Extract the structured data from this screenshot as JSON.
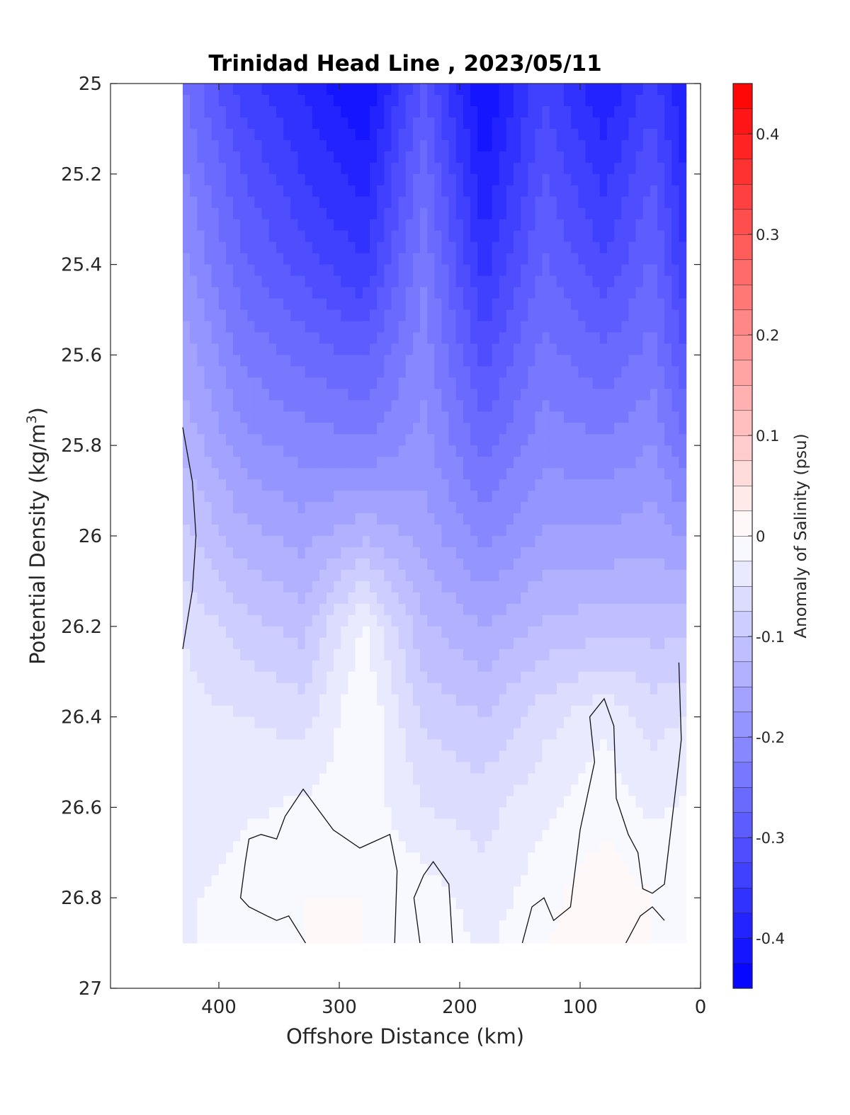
{
  "chart_data": {
    "type": "heatmap",
    "title": "Trinidad Head Line , 2023/05/11",
    "xlabel": "Offshore Distance (km)",
    "ylabel_main": "Potential Density (kg/m",
    "ylabel_sup": "3",
    "ylabel_close": ")",
    "colorbar_label": "Anomaly of Salinity (psu)",
    "xlim": [
      490,
      0
    ],
    "ylim": [
      25,
      27
    ],
    "y_reversed": true,
    "x_reversed": true,
    "xticks": [
      400,
      300,
      200,
      100,
      0
    ],
    "xtick_labels": [
      "400",
      "300",
      "200",
      "100",
      "0"
    ],
    "yticks": [
      25,
      25.2,
      25.4,
      25.6,
      25.8,
      26,
      26.2,
      26.4,
      26.6,
      26.8,
      27
    ],
    "ytick_labels": [
      "25",
      "25.2",
      "25.4",
      "25.6",
      "25.8",
      "26",
      "26.2",
      "26.4",
      "26.6",
      "26.8",
      "27"
    ],
    "clim": [
      -0.45,
      0.45
    ],
    "cbar_ticks": [
      0.4,
      0.3,
      0.2,
      0.1,
      0,
      -0.1,
      -0.2,
      -0.3,
      -0.4
    ],
    "cbar_tick_labels": [
      "0.4",
      "0.3",
      "0.2",
      "0.1",
      "0",
      "-0.1",
      "-0.2",
      "-0.3",
      "-0.4"
    ],
    "cbar_levels": 36,
    "colormap": {
      "negative": "#0000ff",
      "zero": "#ffffff",
      "positive": "#ff0000"
    },
    "data_extent": {
      "x": [
        430,
        12
      ],
      "y": [
        25,
        26.9
      ]
    },
    "stations_x": [
      430,
      380,
      330,
      280,
      230,
      180,
      130,
      80,
      40,
      12
    ],
    "profile_y": [
      25,
      25.2,
      25.4,
      25.6,
      25.8,
      26.0,
      26.2,
      26.4,
      26.6,
      26.8,
      26.9
    ],
    "salinity_anomaly": [
      [
        -0.25,
        -0.34,
        -0.38,
        -0.43,
        -0.3,
        -0.43,
        -0.33,
        -0.4,
        -0.34,
        -0.4
      ],
      [
        -0.22,
        -0.3,
        -0.35,
        -0.39,
        -0.26,
        -0.4,
        -0.3,
        -0.36,
        -0.3,
        -0.38
      ],
      [
        -0.19,
        -0.27,
        -0.31,
        -0.35,
        -0.23,
        -0.36,
        -0.27,
        -0.32,
        -0.27,
        -0.35
      ],
      [
        -0.16,
        -0.23,
        -0.26,
        -0.28,
        -0.21,
        -0.31,
        -0.24,
        -0.27,
        -0.24,
        -0.3
      ],
      [
        -0.13,
        -0.19,
        -0.21,
        -0.22,
        -0.19,
        -0.26,
        -0.21,
        -0.22,
        -0.2,
        -0.25
      ],
      [
        -0.09,
        -0.14,
        -0.16,
        -0.13,
        -0.16,
        -0.21,
        -0.17,
        -0.17,
        -0.16,
        -0.18
      ],
      [
        -0.05,
        -0.09,
        -0.11,
        -0.02,
        -0.12,
        -0.15,
        -0.12,
        -0.11,
        -0.11,
        -0.11
      ],
      [
        -0.04,
        -0.05,
        -0.06,
        0.0,
        -0.08,
        -0.1,
        -0.06,
        -0.03,
        -0.06,
        -0.05
      ],
      [
        -0.05,
        -0.03,
        -0.02,
        -0.01,
        -0.05,
        -0.06,
        -0.03,
        -0.01,
        -0.03,
        -0.02
      ],
      [
        -0.03,
        -0.01,
        0.0,
        0.0,
        -0.01,
        -0.04,
        -0.01,
        0.02,
        0.0,
        -0.01
      ],
      [
        -0.03,
        -0.01,
        0.0,
        0.0,
        0.0,
        -0.03,
        0.0,
        0.02,
        0.0,
        -0.01
      ]
    ],
    "zero_contours": [
      [
        [
          430,
          25.76
        ],
        [
          422,
          25.88
        ],
        [
          419,
          26.0
        ],
        [
          422,
          26.12
        ],
        [
          430,
          26.25
        ]
      ],
      [
        [
          328,
          26.9
        ],
        [
          342,
          26.84
        ],
        [
          352,
          26.85
        ],
        [
          360,
          26.84
        ],
        [
          375,
          26.82
        ],
        [
          382,
          26.8
        ],
        [
          378,
          26.72
        ],
        [
          375,
          26.67
        ],
        [
          365,
          26.66
        ],
        [
          352,
          26.67
        ],
        [
          345,
          26.62
        ],
        [
          330,
          26.56
        ],
        [
          305,
          26.65
        ],
        [
          283,
          26.69
        ],
        [
          258,
          26.66
        ],
        [
          252,
          26.74
        ],
        [
          254,
          26.9
        ]
      ],
      [
        [
          206,
          26.9
        ],
        [
          209,
          26.77
        ],
        [
          222,
          26.72
        ],
        [
          230,
          26.75
        ],
        [
          238,
          26.8
        ],
        [
          233,
          26.9
        ]
      ],
      [
        [
          148,
          26.9
        ],
        [
          140,
          26.82
        ],
        [
          130,
          26.8
        ],
        [
          122,
          26.85
        ],
        [
          108,
          26.82
        ],
        [
          100,
          26.65
        ],
        [
          88,
          26.5
        ],
        [
          92,
          26.4
        ],
        [
          80,
          26.36
        ],
        [
          72,
          26.42
        ],
        [
          70,
          26.58
        ],
        [
          60,
          26.66
        ],
        [
          52,
          26.7
        ],
        [
          48,
          26.78
        ],
        [
          40,
          26.79
        ],
        [
          30,
          26.77
        ],
        [
          18,
          26.5
        ],
        [
          16,
          26.45
        ],
        [
          18,
          26.28
        ]
      ],
      [
        [
          62,
          26.9
        ],
        [
          50,
          26.84
        ],
        [
          40,
          26.82
        ],
        [
          30,
          26.85
        ]
      ]
    ]
  }
}
